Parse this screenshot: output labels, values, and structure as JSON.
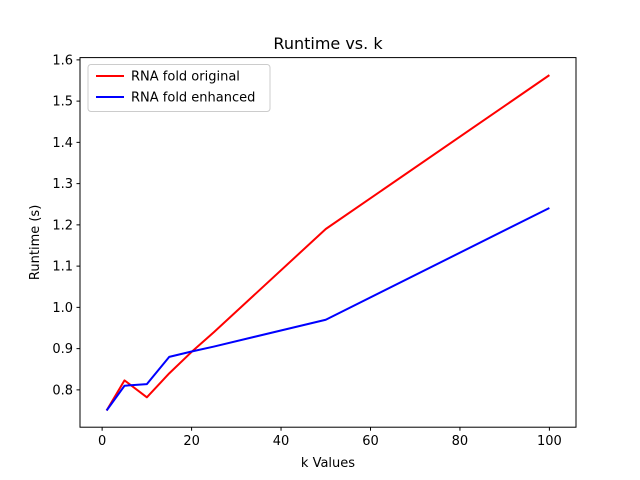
{
  "chart_data": {
    "type": "line",
    "title": "Runtime vs. k",
    "xlabel": "k Values",
    "ylabel": "Runtime (s)",
    "xlim": [
      -4.95,
      105.95
    ],
    "ylim": [
      0.7095,
      1.6055
    ],
    "xticks": [
      0,
      20,
      40,
      60,
      80,
      100
    ],
    "xtick_labels": [
      "0",
      "20",
      "40",
      "60",
      "80",
      "100"
    ],
    "yticks": [
      0.8,
      0.9,
      1.0,
      1.1,
      1.2,
      1.3,
      1.4,
      1.5,
      1.6
    ],
    "ytick_labels": [
      "0.8",
      "0.9",
      "1.0",
      "1.1",
      "1.2",
      "1.3",
      "1.4",
      "1.5",
      "1.6"
    ],
    "grid": false,
    "legend_position": "top-left",
    "series": [
      {
        "name": "RNA fold original",
        "color": "#ff0000",
        "x": [
          1,
          5,
          10,
          15,
          20,
          25,
          50,
          100
        ],
        "y": [
          0.75,
          0.823,
          0.782,
          0.84,
          0.892,
          0.94,
          1.19,
          1.563
        ]
      },
      {
        "name": "RNA fold enhanced",
        "color": "#0000ff",
        "x": [
          1,
          5,
          10,
          15,
          20,
          25,
          50,
          100
        ],
        "y": [
          0.75,
          0.81,
          0.814,
          0.88,
          0.893,
          0.905,
          0.97,
          1.241
        ]
      }
    ]
  }
}
